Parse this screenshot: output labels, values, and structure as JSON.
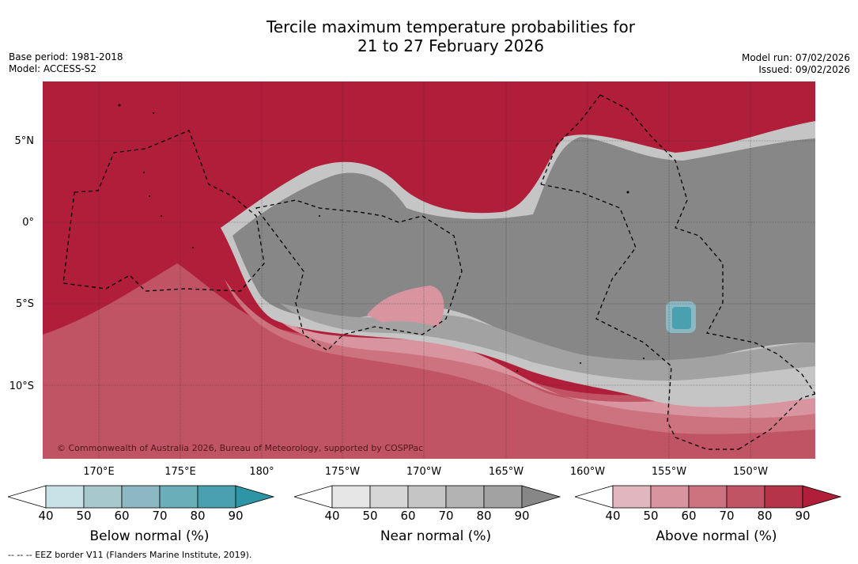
{
  "title": {
    "line1": "Tercile maximum temperature probabilities for",
    "line2": "21 to 27 February 2026"
  },
  "info_left": {
    "base_period": "Base period: 1981-2018",
    "model": "Model: ACCESS-S2"
  },
  "info_right": {
    "model_run": "Model run: 07/02/2026",
    "issued": "Issued: 09/02/2026"
  },
  "copyright": "© Commonwealth of Australia 2026, Bureau of Meteorology, supported by COSPPac",
  "lat_labels": [
    "5°N",
    "0°",
    "5°S",
    "10°S"
  ],
  "lon_labels": [
    "170°E",
    "175°E",
    "180°",
    "175°W",
    "170°W",
    "165°W",
    "160°W",
    "155°W",
    "150°W"
  ],
  "colorbars": [
    {
      "title": "Below normal (%)",
      "ticks": [
        "40",
        "50",
        "60",
        "70",
        "80",
        "90"
      ],
      "colors": [
        "#ffffff",
        "#c8e2e8",
        "#a7c8cc",
        "#8bb8c2",
        "#6aaeba",
        "#4ba0b0",
        "#2d95a6"
      ]
    },
    {
      "title": "Near normal (%)",
      "ticks": [
        "40",
        "50",
        "60",
        "70",
        "80",
        "90"
      ],
      "colors": [
        "#ffffff",
        "#e6e6e6",
        "#d6d6d6",
        "#c5c5c5",
        "#b3b3b3",
        "#a2a2a2",
        "#878787"
      ]
    },
    {
      "title": "Above normal (%)",
      "ticks": [
        "40",
        "50",
        "60",
        "70",
        "80",
        "90"
      ],
      "colors": [
        "#ffffff",
        "#e2b6be",
        "#d8949f",
        "#cc737f",
        "#c05364",
        "#b5344a",
        "#b11e39"
      ]
    }
  ],
  "footer": "--  --  -- EEZ border V11 (Flanders Marine Institute, 2019).",
  "colors": {
    "above_dominant": "#b11e39",
    "near_dominant": "#878787",
    "below_dominant": "#6aaeba"
  }
}
